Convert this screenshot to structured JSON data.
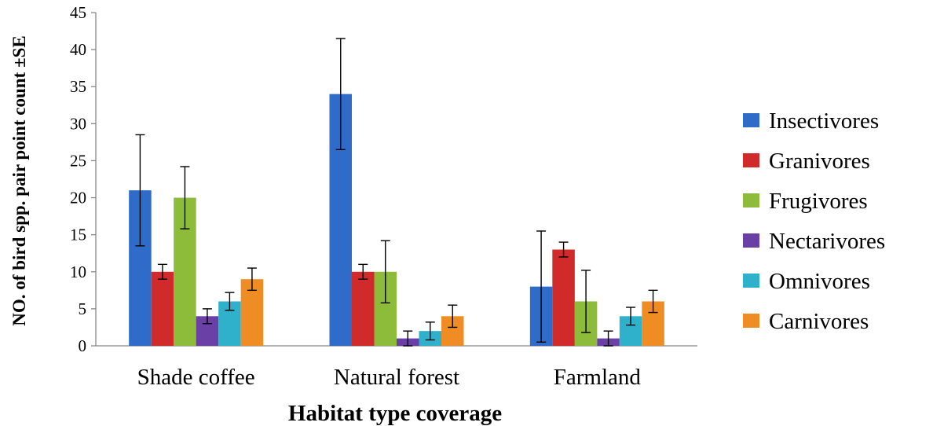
{
  "chart_data": {
    "type": "bar",
    "title": "",
    "xlabel": "Habitat type coverage",
    "ylabel": "NO. of bird spp. pair point count ±SE",
    "ylim": [
      0,
      45
    ],
    "yticks": [
      "0",
      "5",
      "10",
      "15",
      "20",
      "25",
      "30",
      "35",
      "40",
      "45"
    ],
    "categories": [
      "Shade coffee",
      "Natural forest",
      "Farmland"
    ],
    "legend_position": "right",
    "grid": false,
    "series": [
      {
        "name": "Insectivores",
        "color": "#2f6cc9",
        "values": [
          21,
          34,
          8
        ],
        "errors": [
          7.5,
          7.5,
          7.5
        ]
      },
      {
        "name": "Granivores",
        "color": "#d12a2a",
        "values": [
          10,
          10,
          13
        ],
        "errors": [
          1,
          1,
          1
        ]
      },
      {
        "name": "Frugivores",
        "color": "#8dbb3a",
        "values": [
          20,
          10,
          6
        ],
        "errors": [
          4.2,
          4.2,
          4.2
        ]
      },
      {
        "name": "Nectarivores",
        "color": "#6a3fa6",
        "values": [
          4,
          1,
          1
        ],
        "errors": [
          1,
          1,
          1
        ]
      },
      {
        "name": "Omnivores",
        "color": "#2fb1cc",
        "values": [
          6,
          2,
          4
        ],
        "errors": [
          1.2,
          1.2,
          1.2
        ]
      },
      {
        "name": "Carnivores",
        "color": "#f08c24",
        "values": [
          9,
          4,
          6
        ],
        "errors": [
          1.5,
          1.5,
          1.5
        ]
      }
    ]
  }
}
